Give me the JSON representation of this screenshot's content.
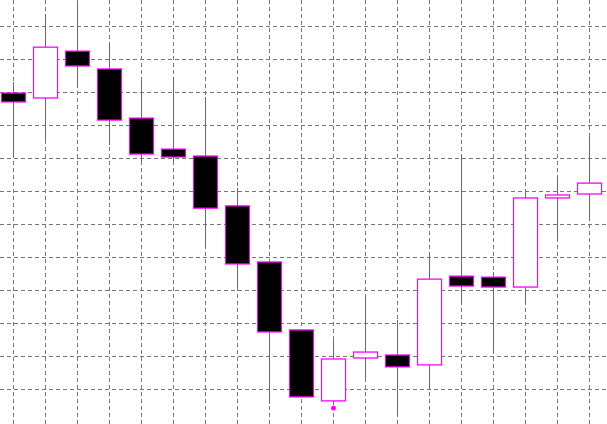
{
  "chart_data": {
    "type": "candlestick",
    "title": "",
    "xlabel": "",
    "ylabel": "",
    "ylim": [
      0,
      128.5
    ],
    "grid": true,
    "grid_style": "dashed",
    "y_grid_step": 10,
    "colors": {
      "background": "#ffffff",
      "grid": "#777777",
      "outline": "#ff00ff",
      "wick": "#ff00ff",
      "bull_fill": "#ffffff",
      "bear_fill": "#000000",
      "marker": "#ff00ff"
    },
    "candles": [
      {
        "o": 99.7,
        "h": 103.0,
        "l": 80.3,
        "c": 97.0
      },
      {
        "o": 98.2,
        "h": 123.6,
        "l": 85.5,
        "c": 113.6
      },
      {
        "o": 112.4,
        "h": 127.0,
        "l": 101.5,
        "c": 107.9
      },
      {
        "o": 107.0,
        "h": 114.5,
        "l": 83.9,
        "c": 91.5
      },
      {
        "o": 92.1,
        "h": 103.3,
        "l": 78.5,
        "c": 81.2
      },
      {
        "o": 82.7,
        "h": 104.5,
        "l": 78.5,
        "c": 80.3
      },
      {
        "o": 80.6,
        "h": 98.5,
        "l": 53.3,
        "c": 64.8
      },
      {
        "o": 65.5,
        "h": 70.9,
        "l": 40.6,
        "c": 47.9
      },
      {
        "o": 48.5,
        "h": 48.5,
        "l": 5.5,
        "c": 27.3
      },
      {
        "o": 27.9,
        "h": 27.9,
        "l": 7.6,
        "c": 7.6
      },
      {
        "o": 6.4,
        "h": 24.8,
        "l": 5.2,
        "c": 19.1
      },
      {
        "o": 19.4,
        "h": 38.2,
        "l": 13.3,
        "c": 21.2
      },
      {
        "o": 20.3,
        "h": 30.9,
        "l": 2.1,
        "c": 16.7
      },
      {
        "o": 17.3,
        "h": 51.2,
        "l": 9.7,
        "c": 43.3
      },
      {
        "o": 44.2,
        "h": 80.9,
        "l": 35.5,
        "c": 41.2
      },
      {
        "o": 43.9,
        "h": 45.5,
        "l": 21.8,
        "c": 40.9
      },
      {
        "o": 40.9,
        "h": 70.3,
        "l": 36.4,
        "c": 67.9
      },
      {
        "o": 67.9,
        "h": 73.9,
        "l": 55.2,
        "c": 68.8
      },
      {
        "o": 69.1,
        "h": 86.4,
        "l": 60.9,
        "c": 72.4
      }
    ],
    "markers": [
      {
        "candle": 10,
        "value": 4.2,
        "shape": "dot"
      }
    ]
  }
}
